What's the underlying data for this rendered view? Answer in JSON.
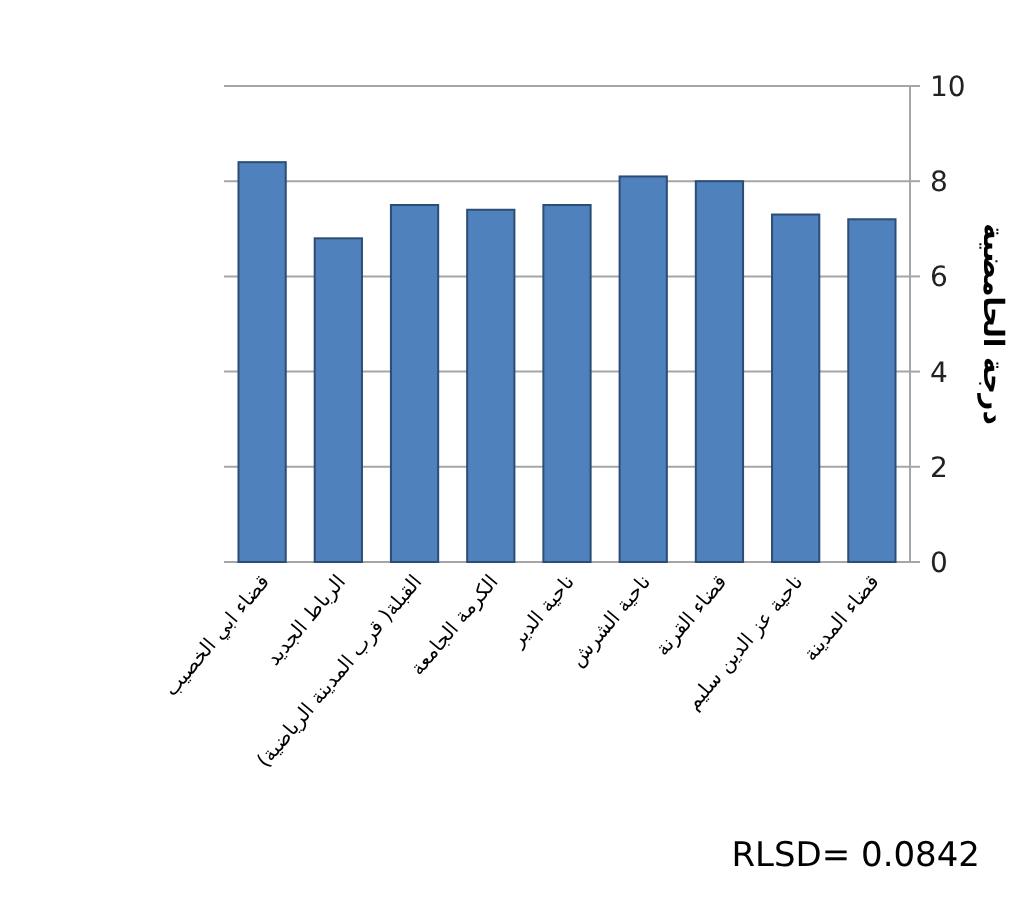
{
  "chart_data": {
    "type": "bar",
    "ylabel": "درجة الحامضية",
    "categories": [
      "قضاء ابي الخصيب",
      "الرباط الجديد",
      "القبلة( قرب المدينة الرياضية)",
      "الكرمة الجامعة",
      "ناحية الدير",
      "ناحية الشرش",
      "قضاء القرنة",
      "ناحية عز الدين سليم",
      "قضاء المدينة"
    ],
    "values": [
      8.4,
      6.8,
      7.5,
      7.4,
      7.5,
      8.1,
      8.0,
      7.3,
      7.2
    ],
    "color": "#4f81bd",
    "ylim": [
      0,
      10
    ],
    "yticks": [
      0,
      2,
      4,
      6,
      8,
      10
    ],
    "grid": "y",
    "annotations": [
      "RLSD= 0.0842"
    ]
  }
}
